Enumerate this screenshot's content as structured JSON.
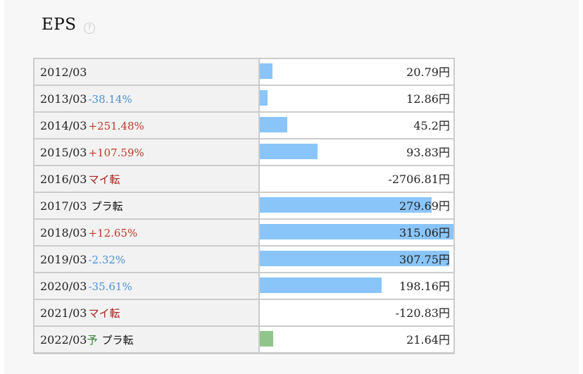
{
  "header": {
    "title": "EPS",
    "help_icon": "?"
  },
  "unit": "円",
  "chart_data": {
    "type": "bar",
    "title": "EPS",
    "categories": [
      "2012/03",
      "2013/03",
      "2014/03",
      "2015/03",
      "2016/03",
      "2017/03",
      "2018/03",
      "2019/03",
      "2020/03",
      "2021/03",
      "2022/03"
    ],
    "values": [
      20.79,
      12.86,
      45.2,
      93.83,
      -2706.81,
      279.69,
      315.06,
      307.75,
      198.16,
      -120.83,
      21.64
    ],
    "xlabel": "",
    "ylabel": "",
    "colors": {
      "actual": "#8ac5fa",
      "forecast": "#8fc58b"
    }
  },
  "rows": [
    {
      "period": "2012/03",
      "change": "",
      "change_type": "none",
      "forecast_mark": "",
      "value": "20.79",
      "value_num": 20.79,
      "forecast": false
    },
    {
      "period": "2013/03",
      "change": "-38.14%",
      "change_type": "neg",
      "forecast_mark": "",
      "value": "12.86",
      "value_num": 12.86,
      "forecast": false
    },
    {
      "period": "2014/03",
      "change": "+251.48%",
      "change_type": "pos",
      "forecast_mark": "",
      "value": "45.2",
      "value_num": 45.2,
      "forecast": false
    },
    {
      "period": "2015/03",
      "change": "+107.59%",
      "change_type": "pos",
      "forecast_mark": "",
      "value": "93.83",
      "value_num": 93.83,
      "forecast": false
    },
    {
      "period": "2016/03",
      "change": "マイ転",
      "change_type": "turn-minus",
      "forecast_mark": "",
      "value": "-2706.81",
      "value_num": -2706.81,
      "forecast": false
    },
    {
      "period": "2017/03",
      "change": "プラ転",
      "change_type": "turn-plus",
      "forecast_mark": "",
      "value": "279.69",
      "value_num": 279.69,
      "forecast": false
    },
    {
      "period": "2018/03",
      "change": "+12.65%",
      "change_type": "pos",
      "forecast_mark": "",
      "value": "315.06",
      "value_num": 315.06,
      "forecast": false
    },
    {
      "period": "2019/03",
      "change": "-2.32%",
      "change_type": "neg",
      "forecast_mark": "",
      "value": "307.75",
      "value_num": 307.75,
      "forecast": false
    },
    {
      "period": "2020/03",
      "change": "-35.61%",
      "change_type": "neg",
      "forecast_mark": "",
      "value": "198.16",
      "value_num": 198.16,
      "forecast": false
    },
    {
      "period": "2021/03",
      "change": "マイ転",
      "change_type": "turn-minus",
      "forecast_mark": "",
      "value": "-120.83",
      "value_num": -120.83,
      "forecast": false
    },
    {
      "period": "2022/03",
      "change": "プラ転",
      "change_type": "turn-plus",
      "forecast_mark": "予",
      "value": "21.64",
      "value_num": 21.64,
      "forecast": true
    }
  ]
}
